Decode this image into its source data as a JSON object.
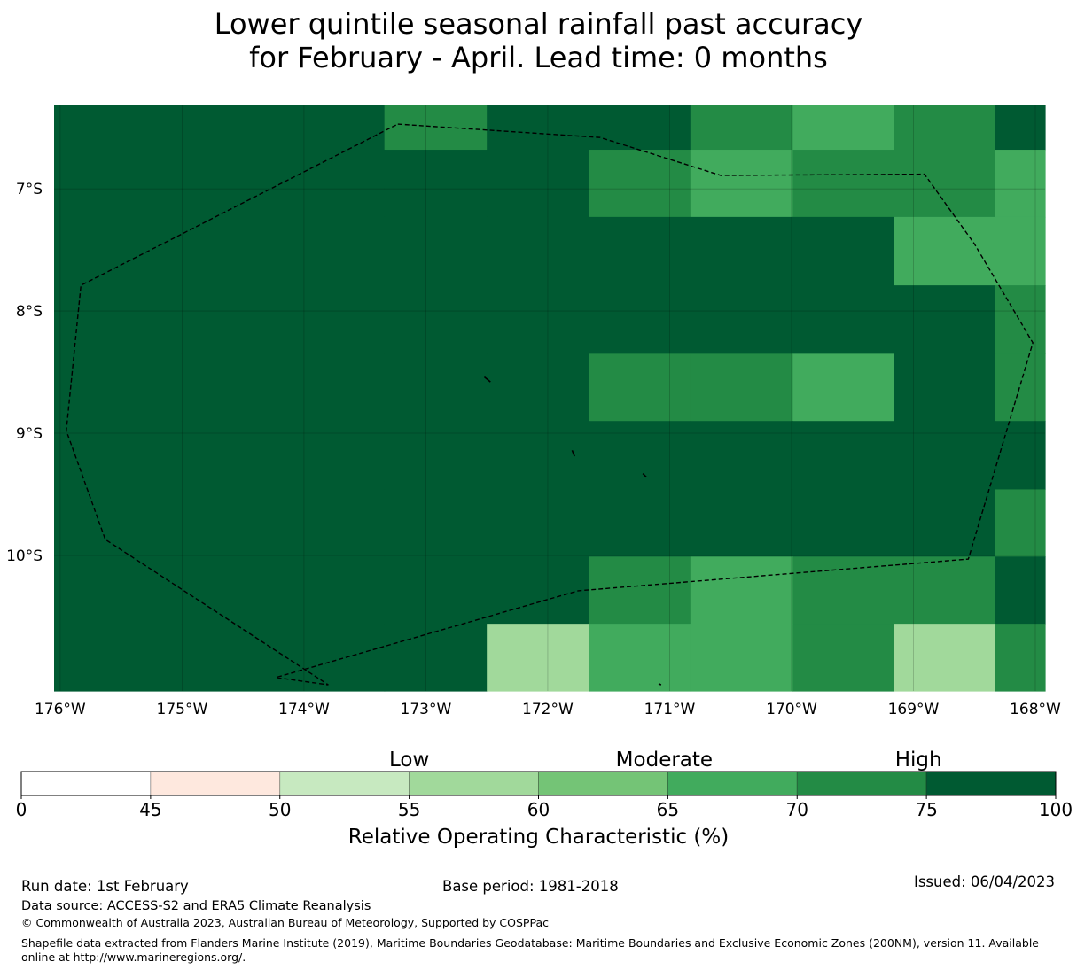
{
  "title": {
    "line1": "Lower quintile seasonal rainfall past accuracy",
    "line2": "for February - April. Lead time: 0 months"
  },
  "colors": {
    "c45": "#ffffff",
    "c50": "#fee8de",
    "c55": "#c7e9c0",
    "c60": "#a1d99b",
    "c65": "#74c476",
    "c70": "#41ab5d",
    "c75": "#238b45",
    "c100": "#005a32"
  },
  "chart_data": {
    "type": "heatmap",
    "title": "Lower quintile seasonal rainfall past accuracy for February - April. Lead time: 0 months",
    "lon_range": [
      -176.05,
      -167.92
    ],
    "lat_range": [
      -11.11,
      -6.31
    ],
    "grid": true,
    "lon_ticks": [
      {
        "value": -176,
        "label": "176°W"
      },
      {
        "value": -175,
        "label": "175°W"
      },
      {
        "value": -174,
        "label": "174°W"
      },
      {
        "value": -173,
        "label": "173°W"
      },
      {
        "value": -172,
        "label": "172°W"
      },
      {
        "value": -171,
        "label": "171°W"
      },
      {
        "value": -170,
        "label": "170°W"
      },
      {
        "value": -169,
        "label": "169°W"
      },
      {
        "value": -168,
        "label": "168°W"
      }
    ],
    "lat_ticks": [
      {
        "value": -7,
        "label": "7°S"
      },
      {
        "value": -8,
        "label": "8°S"
      },
      {
        "value": -9,
        "label": "9°S"
      },
      {
        "value": -10,
        "label": "10°S"
      }
    ],
    "cell_columns": [
      [
        -176.05,
        -173.34
      ],
      [
        -173.34,
        -172.5
      ],
      [
        -172.5,
        -171.66
      ],
      [
        -171.66,
        -170.83
      ],
      [
        -170.83,
        -169.99
      ],
      [
        -169.99,
        -169.16
      ],
      [
        -169.16,
        -168.33
      ],
      [
        -168.33,
        -167.92
      ]
    ],
    "cell_rows": [
      {
        "lat": [
          -6.31,
          -6.68
        ],
        "classes": [
          "c100",
          "c75",
          "c100",
          "c100",
          "c75",
          "c70",
          "c75",
          "c100"
        ]
      },
      {
        "lat": [
          -6.68,
          -7.23
        ],
        "classes": [
          "c100",
          "c100",
          "c100",
          "c75",
          "c70",
          "c75",
          "c75",
          "c70"
        ]
      },
      {
        "lat": [
          -7.23,
          -7.79
        ],
        "classes": [
          "c100",
          "c100",
          "c100",
          "c100",
          "c100",
          "c100",
          "c70",
          "c70"
        ]
      },
      {
        "lat": [
          -7.79,
          -8.35
        ],
        "classes": [
          "c100",
          "c100",
          "c100",
          "c100",
          "c100",
          "c100",
          "c100",
          "c75"
        ]
      },
      {
        "lat": [
          -8.35,
          -8.9
        ],
        "classes": [
          "c100",
          "c100",
          "c100",
          "c75",
          "c75",
          "c70",
          "c100",
          "c75"
        ]
      },
      {
        "lat": [
          -8.9,
          -9.46
        ],
        "classes": [
          "c100",
          "c100",
          "c100",
          "c100",
          "c100",
          "c100",
          "c100",
          "c100"
        ]
      },
      {
        "lat": [
          -9.46,
          -10.01
        ],
        "classes": [
          "c100",
          "c100",
          "c100",
          "c100",
          "c100",
          "c100",
          "c100",
          "c75"
        ]
      },
      {
        "lat": [
          -10.01,
          -10.56
        ],
        "classes": [
          "c100",
          "c100",
          "c100",
          "c75",
          "c70",
          "c75",
          "c75",
          "c100"
        ]
      },
      {
        "lat": [
          -10.56,
          -11.11
        ],
        "classes": [
          "c100",
          "c100",
          "c60",
          "c70",
          "c70",
          "c75",
          "c60",
          "c75"
        ]
      }
    ],
    "boundary_lonlat": [
      [
        -173.23,
        -6.47
      ],
      [
        -171.57,
        -6.58
      ],
      [
        -170.58,
        -6.89
      ],
      [
        -168.91,
        -6.88
      ],
      [
        -168.5,
        -7.45
      ],
      [
        -168.02,
        -8.26
      ],
      [
        -168.55,
        -10.03
      ],
      [
        -171.75,
        -10.29
      ],
      [
        -174.23,
        -11.0
      ],
      [
        -173.8,
        -11.06
      ],
      [
        -175.63,
        -9.87
      ],
      [
        -175.95,
        -8.98
      ],
      [
        -175.83,
        -7.79
      ]
    ],
    "islands_lonlat": [
      [
        [
          -172.52,
          -8.54
        ],
        [
          -172.47,
          -8.58
        ]
      ],
      [
        [
          -171.8,
          -9.14
        ],
        [
          -171.78,
          -9.19
        ]
      ],
      [
        [
          -171.22,
          -9.33
        ],
        [
          -171.19,
          -9.36
        ]
      ],
      [
        [
          -171.09,
          -11.05
        ],
        [
          -171.07,
          -11.06
        ]
      ]
    ],
    "colorbar": {
      "label": "Relative Operating Characteristic (%)",
      "bounds": [
        0,
        45,
        50,
        55,
        60,
        65,
        70,
        75,
        100
      ],
      "tick_labels": [
        "0",
        "45",
        "50",
        "55",
        "60",
        "65",
        "70",
        "75",
        "100"
      ],
      "segment_classes": [
        "c45",
        "c50",
        "c55",
        "c60",
        "c65",
        "c70",
        "c75",
        "c100"
      ],
      "categories": [
        {
          "label": "Low",
          "at": 55
        },
        {
          "label": "Moderate",
          "at": 65
        },
        {
          "label": "High",
          "at": 75
        }
      ]
    }
  },
  "footer": {
    "run_date": "Run date: 1st February",
    "base_period": "Base period: 1981-2018",
    "issued": "Issued: 06/04/2023",
    "data_source": "Data source: ACCESS-S2 and ERA5 Climate Reanalysis",
    "copyright": "© Commonwealth of Australia 2023, Australian Bureau of Meteorology, Supported by COSPPac",
    "shapefile": "Shapefile data extracted from Flanders Marine Institute (2019), Maritime Boundaries Geodatabase: Maritime Boundaries and Exclusive Economic Zones (200NM), version 11. Available online at http://www.marineregions.org/."
  }
}
